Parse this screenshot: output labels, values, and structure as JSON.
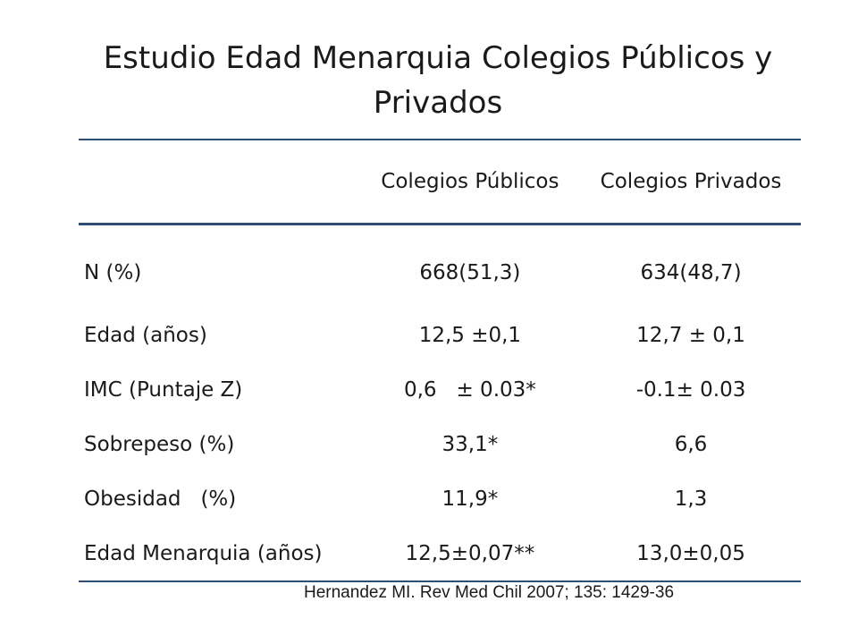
{
  "title": "Estudio Edad Menarquia Colegios Públicos y Privados",
  "table": {
    "headers": [
      "",
      "Colegios Públicos",
      "Colegios Privados"
    ],
    "rows": [
      {
        "label": "N (%)",
        "publicos": "668(51,3)",
        "privados": "634(48,7)"
      },
      {
        "label": "Edad (años)",
        "publicos": "12,5 ±0,1",
        "privados": "12,7 ± 0,1"
      },
      {
        "label": "IMC (Puntaje Z)",
        "publicos": "0,6   ± 0.03*",
        "privados": "-0.1± 0.03"
      },
      {
        "label": "Sobrepeso (%)",
        "publicos": "33,1*",
        "privados": "6,6"
      },
      {
        "label": "Obesidad   (%)",
        "publicos": "11,9*",
        "privados": "1,3"
      },
      {
        "label": "Edad Menarquia (años)",
        "publicos": "12,5±0,07**",
        "privados": "13,0±0,05"
      }
    ]
  },
  "citation": "Hernandez MI. Rev Med Chil 2007; 135: 1429-36"
}
